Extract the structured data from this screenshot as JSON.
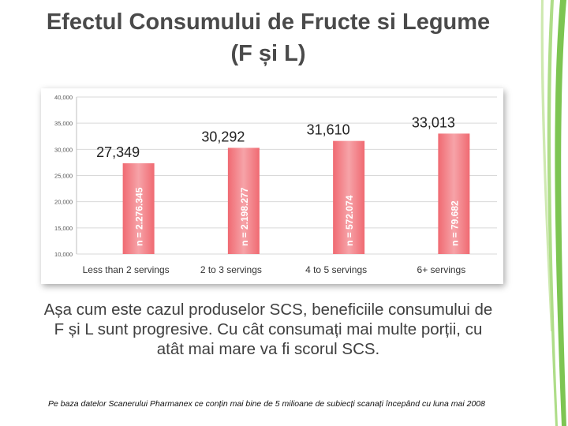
{
  "title_line1": "Efectul Consumului de Fructe si Legume",
  "title_line2": "(F și L)",
  "body_text": "Așa cum este cazul produselor SCS, beneficiile consumului de F și L sunt progresive. Cu cât consumați mai multe porții, cu atât mai mare va fi scorul SCS.",
  "footnote": "Pe baza datelor Scanerului Pharmanex ce conțin mai bine de 5 milioane de subiecți scanați începând cu luna mai 2008",
  "colors": {
    "bar": "#f06a72",
    "bar_light": "#f6a3a8",
    "deco_green": "#6fbf3f"
  },
  "chart_data": {
    "type": "bar",
    "categories": [
      "Less than 2 servings",
      "2 to 3 servings",
      "4 to 5 servings",
      "6+ servings"
    ],
    "values": [
      27349,
      30292,
      31610,
      33013
    ],
    "value_labels": [
      "27,349",
      "30,292",
      "31,610",
      "33,013"
    ],
    "bar_labels": [
      "n = 2.276.345",
      "n = 2.198.277",
      "n = 572.074",
      "n = 79.682"
    ],
    "y_ticks": [
      "10,000",
      "15,000",
      "20,000",
      "25,000",
      "30,000",
      "35,000",
      "40,000"
    ],
    "ylim": [
      10000,
      40000
    ],
    "grid": true,
    "title": "",
    "xlabel": "",
    "ylabel": ""
  }
}
